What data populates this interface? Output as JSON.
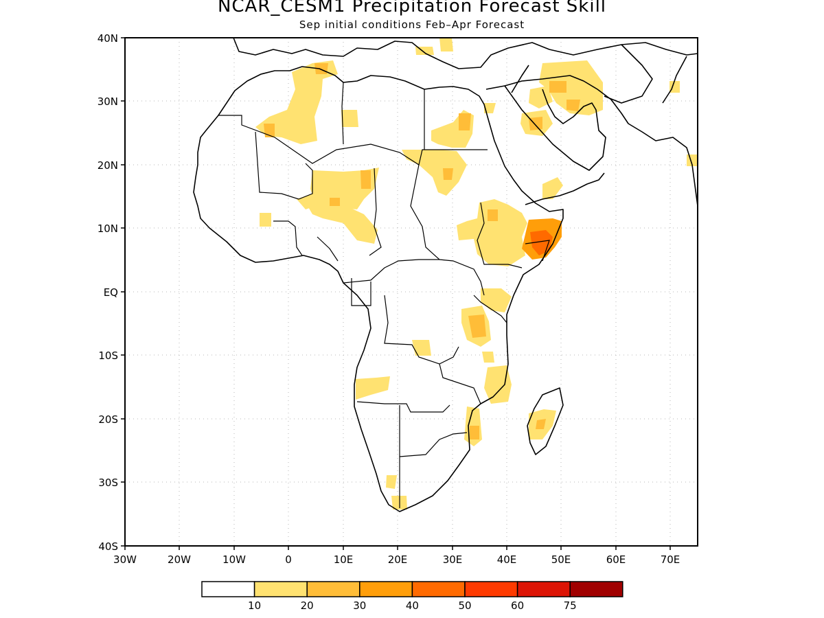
{
  "title": "NCAR_CESM1 Precipitation Forecast Skill",
  "subtitle": "Sep initial conditions  Feb–Apr Forecast",
  "map": {
    "lat_ticks": [
      "40N",
      "30N",
      "20N",
      "10N",
      "EQ",
      "10S",
      "20S",
      "30S",
      "40S"
    ],
    "lon_ticks": [
      "30W",
      "20W",
      "10W",
      "0",
      "10E",
      "20E",
      "30E",
      "40E",
      "50E",
      "60E",
      "70E"
    ],
    "extent": {
      "lon": [
        -30,
        75
      ],
      "lat": [
        -40,
        40
      ]
    },
    "gridlines": "dotted"
  },
  "legend": {
    "labels": [
      "10",
      "20",
      "30",
      "40",
      "50",
      "60",
      "75"
    ],
    "colors": [
      "#ffffff",
      "#ffe271",
      "#ffbd38",
      "#ff9e0a",
      "#ff6a00",
      "#fe3a00",
      "#dc1405",
      "#a00000"
    ]
  },
  "colors": {
    "level_10": "#ffe271",
    "level_20": "#ffbd38",
    "level_30": "#ff9e0a",
    "level_40": "#ff6a00"
  }
}
